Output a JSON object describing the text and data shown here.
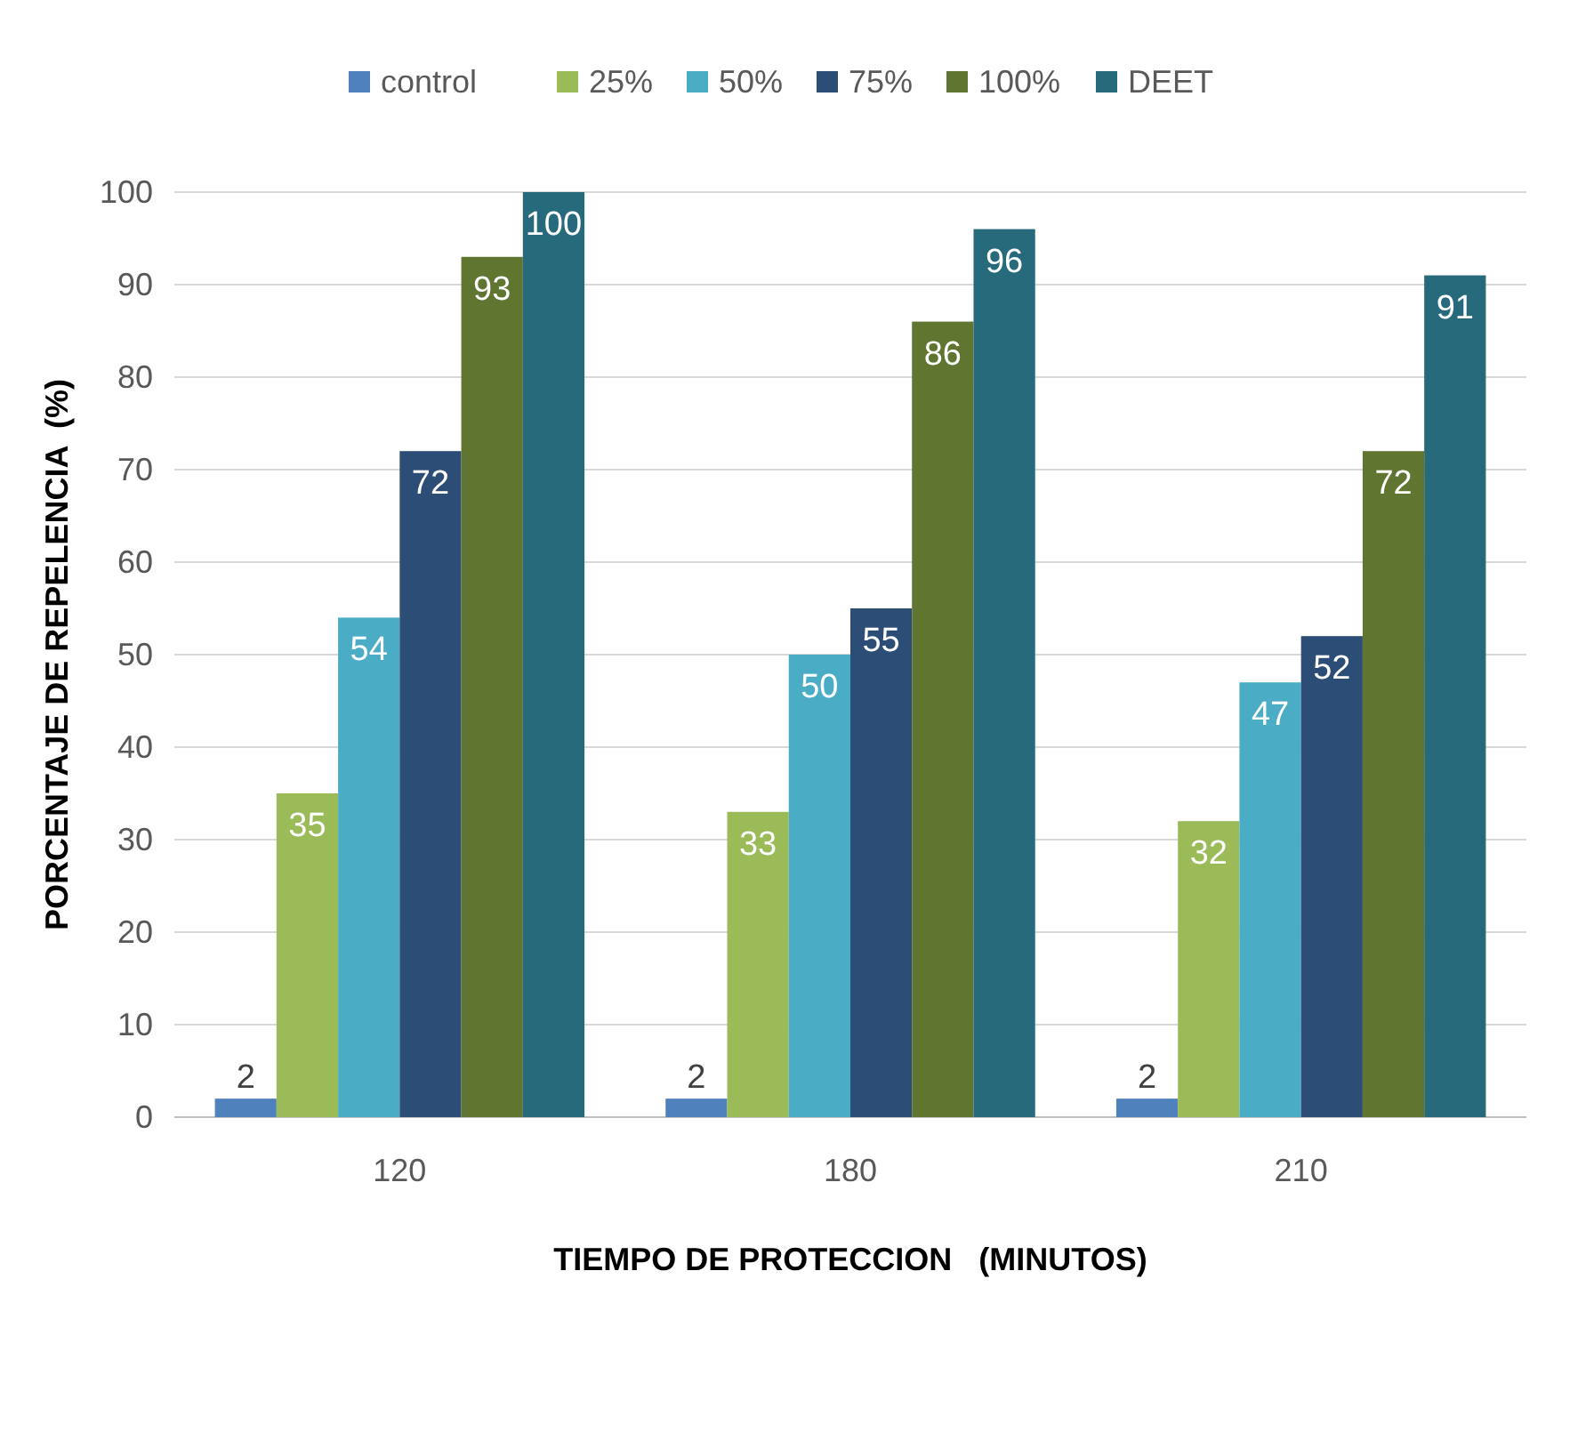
{
  "chart_data": {
    "type": "bar",
    "xlabel": "TIEMPO DE PROTECCION   (MINUTOS)",
    "ylabel": "PORCENTAJE DE REPELENCIA  (%)",
    "categories": [
      "120",
      "180",
      "210"
    ],
    "series": [
      {
        "name": "control",
        "color": "#4f81bd",
        "values": [
          2,
          2,
          2
        ]
      },
      {
        "name": "25%",
        "color": "#9bbb59",
        "values": [
          35,
          33,
          32
        ]
      },
      {
        "name": "50%",
        "color": "#4bacc6",
        "values": [
          54,
          50,
          47
        ]
      },
      {
        "name": "75%",
        "color": "#2c4d75",
        "values": [
          72,
          55,
          52
        ]
      },
      {
        "name": "100%",
        "color": "#5f7530",
        "values": [
          93,
          86,
          72
        ]
      },
      {
        "name": "DEET",
        "color": "#276a7c",
        "values": [
          100,
          96,
          91
        ]
      }
    ],
    "ylim": [
      0,
      100
    ],
    "yticks": [
      0,
      10,
      20,
      30,
      40,
      50,
      60,
      70,
      80,
      90,
      100
    ],
    "grid": "y",
    "legend": "top",
    "data_labels": true
  }
}
